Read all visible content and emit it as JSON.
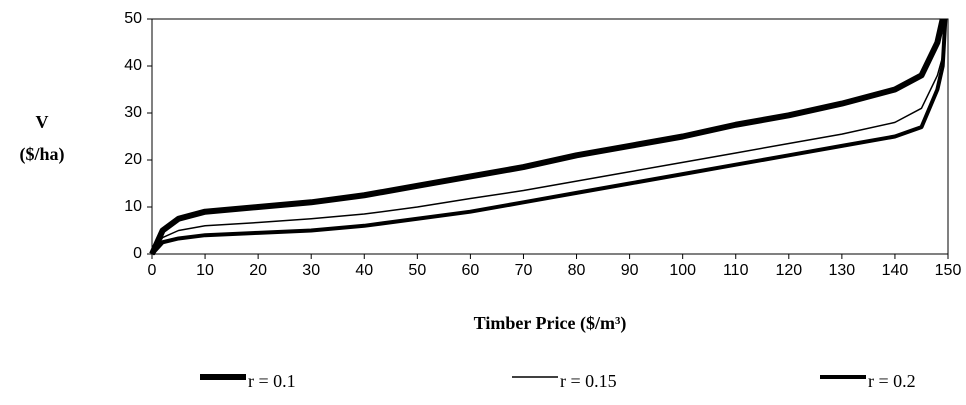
{
  "chart_data": {
    "type": "line",
    "x_label": "Timber Price ($/m³)",
    "y_label": [
      "V",
      "($/ha)"
    ],
    "x": [
      0,
      2,
      5,
      10,
      20,
      30,
      40,
      50,
      60,
      70,
      80,
      90,
      100,
      110,
      120,
      130,
      140,
      145,
      148,
      149,
      149.5
    ],
    "series": [
      {
        "name": "r = 0.1",
        "color": "#000000",
        "linewidth": 6,
        "values": [
          0,
          5,
          7.5,
          9,
          10,
          11,
          12.5,
          14.5,
          16.5,
          18.5,
          21,
          23,
          25,
          27.5,
          29.5,
          32,
          35,
          38,
          45,
          50,
          null
        ]
      },
      {
        "name": "r = 0.15",
        "color": "#000000",
        "linewidth": 1.5,
        "values": [
          0,
          3.5,
          5,
          6,
          6.7,
          7.5,
          8.5,
          10,
          11.8,
          13.5,
          15.5,
          17.5,
          19.5,
          21.5,
          23.5,
          25.5,
          28,
          31,
          38,
          42,
          50
        ]
      },
      {
        "name": "r = 0.2",
        "color": "#000000",
        "linewidth": 4,
        "values": [
          0,
          2.5,
          3.3,
          4,
          4.5,
          5,
          6,
          7.5,
          9,
          11,
          13,
          15,
          17,
          19,
          21,
          23,
          25,
          27,
          35,
          40,
          50
        ]
      }
    ],
    "xlim": [
      0,
      150
    ],
    "xticks": [
      0,
      10,
      20,
      30,
      40,
      50,
      60,
      70,
      80,
      90,
      100,
      110,
      120,
      130,
      140,
      150
    ],
    "ylim": [
      0,
      50
    ],
    "yticks": [
      0,
      10,
      20,
      30,
      40,
      50
    ],
    "legend": "bottom"
  }
}
